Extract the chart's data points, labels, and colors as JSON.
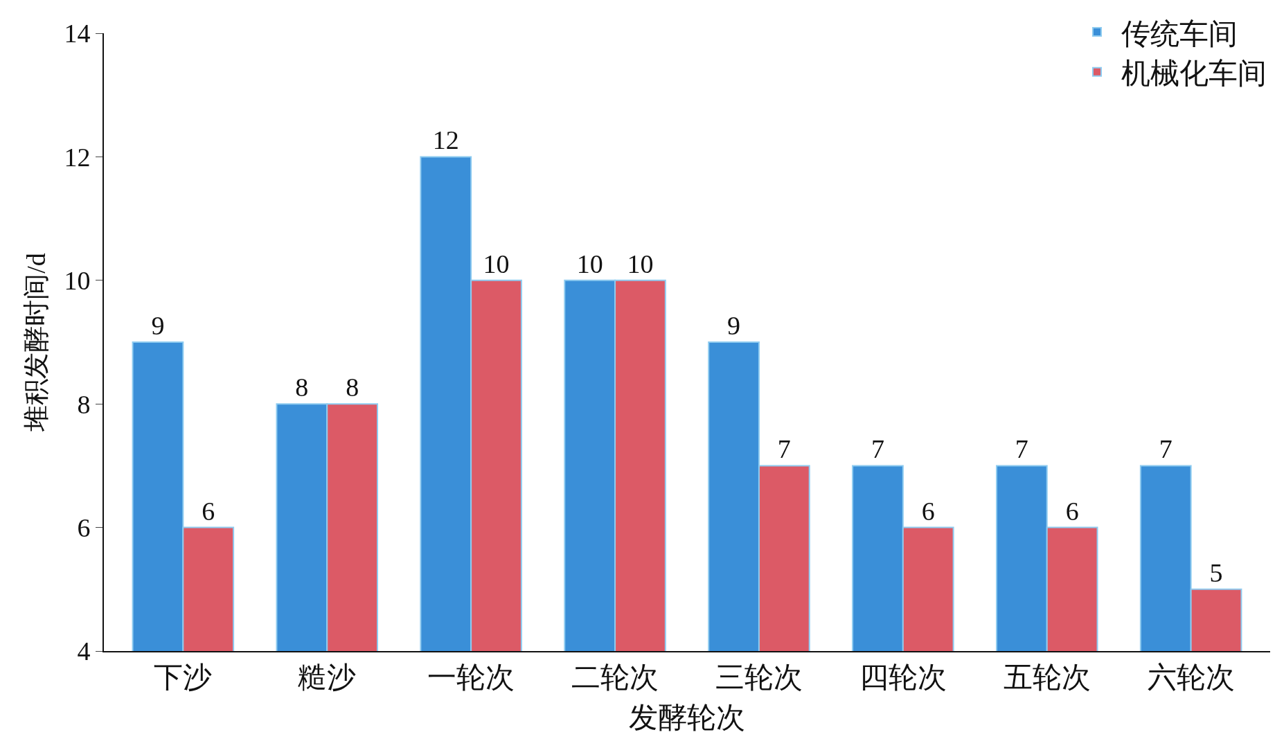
{
  "chart_data": {
    "type": "bar",
    "xlabel": "发酵轮次",
    "ylabel": "堆积发酵时间/d",
    "categories": [
      "下沙",
      "糙沙",
      "一轮次",
      "二轮次",
      "三轮次",
      "四轮次",
      "五轮次",
      "六轮次"
    ],
    "series": [
      {
        "name": "传统车间",
        "color": "#3a8fd8",
        "values": [
          9,
          8,
          12,
          10,
          9,
          7,
          7,
          7
        ]
      },
      {
        "name": "机械化车间",
        "color": "#dc5a66",
        "values": [
          6,
          8,
          10,
          10,
          7,
          6,
          6,
          5
        ]
      }
    ],
    "ylim": [
      4,
      14
    ],
    "yticks": [
      4,
      6,
      8,
      10,
      12,
      14
    ],
    "legend": "top right",
    "data_labels": true
  }
}
